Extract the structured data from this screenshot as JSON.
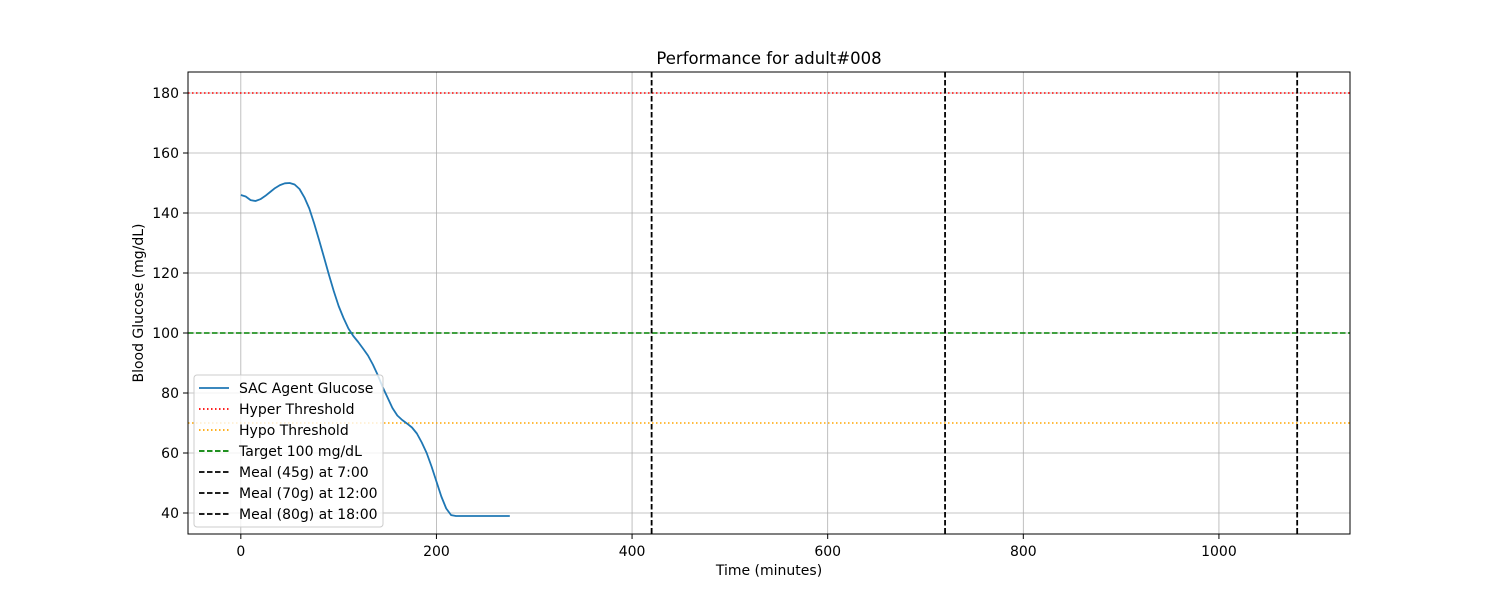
{
  "chart_data": {
    "type": "line",
    "title": "Performance for adult#008",
    "xlabel": "Time (minutes)",
    "ylabel": "Blood Glucose (mg/dL)",
    "xlim": [
      -54,
      1134
    ],
    "ylim": [
      33,
      187
    ],
    "xticks": [
      0,
      200,
      400,
      600,
      800,
      1000
    ],
    "yticks": [
      40,
      60,
      80,
      100,
      120,
      140,
      160,
      180
    ],
    "grid": true,
    "legend_position": "lower-left",
    "series": [
      {
        "name": "SAC Agent Glucose",
        "color": "#1f77b4",
        "style": "solid",
        "x": [
          0,
          5,
          10,
          15,
          20,
          25,
          30,
          35,
          40,
          45,
          50,
          55,
          60,
          65,
          70,
          75,
          80,
          85,
          90,
          95,
          100,
          105,
          110,
          115,
          120,
          125,
          130,
          135,
          140,
          145,
          150,
          155,
          160,
          165,
          170,
          175,
          180,
          185,
          190,
          195,
          200,
          205,
          210,
          215,
          220,
          225,
          230,
          235,
          240,
          245,
          250,
          255,
          260,
          265,
          270,
          275
        ],
        "y": [
          146,
          145.5,
          144.3,
          144,
          144.6,
          145.7,
          147,
          148.3,
          149.3,
          149.9,
          150,
          149.5,
          148,
          145.2,
          141.5,
          136.5,
          131,
          125.3,
          119.5,
          114,
          109,
          105,
          101.5,
          99,
          97,
          94.8,
          92.5,
          89.5,
          86,
          82,
          78.5,
          75,
          72.5,
          71,
          69.8,
          68.5,
          66.5,
          63.5,
          60,
          55.5,
          50.5,
          45.5,
          41.5,
          39.3,
          39,
          39,
          39,
          39,
          39,
          39,
          39,
          39,
          39,
          39,
          39,
          39
        ]
      }
    ],
    "hlines": [
      {
        "name": "Hyper Threshold",
        "y": 180,
        "color": "#ff0000",
        "style": "dotted"
      },
      {
        "name": "Hypo Threshold",
        "y": 70,
        "color": "#ffa500",
        "style": "dotted"
      },
      {
        "name": "Target 100 mg/dL",
        "y": 100,
        "color": "#008000",
        "style": "dashed"
      }
    ],
    "vlines": [
      {
        "name": "Meal (45g) at 7:00",
        "x": 420,
        "color": "#000000",
        "style": "dashed"
      },
      {
        "name": "Meal (70g) at 12:00",
        "x": 720,
        "color": "#000000",
        "style": "dashed"
      },
      {
        "name": "Meal (80g) at 18:00",
        "x": 1080,
        "color": "#000000",
        "style": "dashed"
      }
    ],
    "legend": [
      "SAC Agent Glucose",
      "Hyper Threshold",
      "Hypo Threshold",
      "Target 100 mg/dL",
      "Meal (45g) at 7:00",
      "Meal (70g) at 12:00",
      "Meal (80g) at 18:00"
    ]
  }
}
